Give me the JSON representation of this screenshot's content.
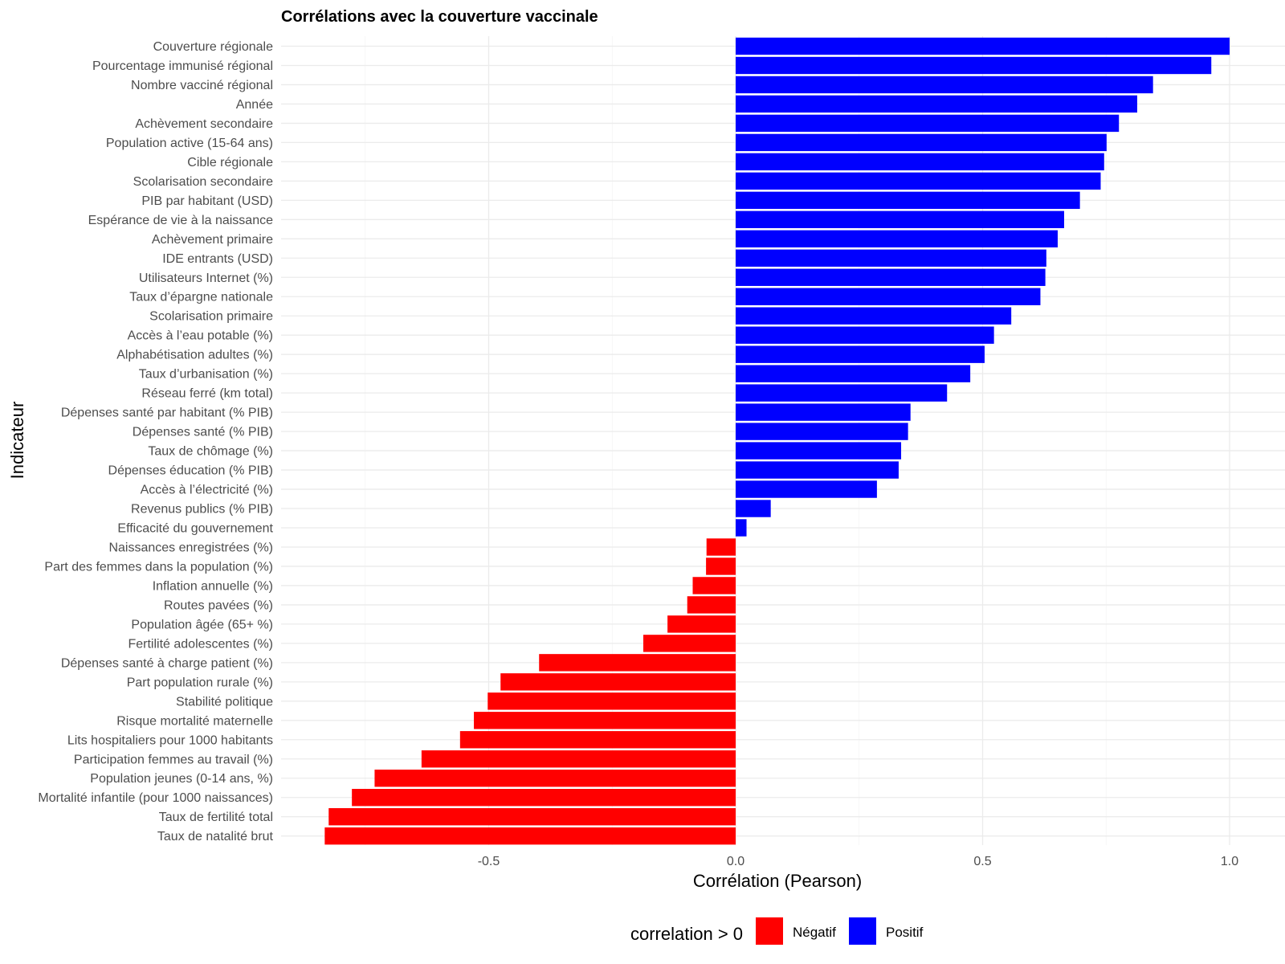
{
  "chart_data": {
    "type": "bar",
    "orientation": "horizontal",
    "title": "Corrélations avec la couverture vaccinale",
    "xlabel": "Corrélation (Pearson)",
    "ylabel": "Indicateur",
    "xlim": [
      -0.92,
      1.08
    ],
    "xticks": [
      -0.5,
      0.0,
      0.5,
      1.0
    ],
    "xtick_labels": [
      "-0.5",
      "0.0",
      "0.5",
      "1.0"
    ],
    "grid": true,
    "legend": {
      "title": "correlation > 0",
      "position": "bottom",
      "entries": [
        {
          "label": "Négatif",
          "color": "#ff0000"
        },
        {
          "label": "Positif",
          "color": "#0000ff"
        }
      ]
    },
    "colors": {
      "negative": "#ff0000",
      "positive": "#0000ff"
    },
    "categories": [
      "Couverture régionale",
      "Pourcentage immunisé régional",
      "Nombre vacciné régional",
      "Année",
      "Achèvement secondaire",
      "Population active (15-64 ans)",
      "Cible régionale",
      "Scolarisation secondaire",
      "PIB par habitant (USD)",
      "Espérance de vie à la naissance",
      "Achèvement primaire",
      "IDE entrants (USD)",
      "Utilisateurs Internet (%)",
      "Taux d’épargne nationale",
      "Scolarisation primaire",
      "Accès à l’eau potable (%)",
      "Alphabétisation adultes (%)",
      "Taux d’urbanisation (%)",
      "Réseau ferré (km total)",
      "Dépenses santé par habitant (% PIB)",
      "Dépenses santé (% PIB)",
      "Taux de chômage (%)",
      "Dépenses éducation (% PIB)",
      "Accès à l’électricité (%)",
      "Revenus publics (% PIB)",
      "Efficacité du gouvernement",
      "Naissances enregistrées (%)",
      "Part des femmes dans la population (%)",
      "Inflation annuelle (%)",
      "Routes pavées (%)",
      "Population âgée (65+ %)",
      "Fertilité adolescentes (%)",
      "Dépenses santé à charge patient (%)",
      "Part population rurale (%)",
      "Stabilité politique",
      "Risque mortalité maternelle",
      "Lits hospitaliers pour 1000 habitants",
      "Participation femmes au travail (%)",
      "Population jeunes (0-14 ans, %)",
      "Mortalité infantile (pour 1000 naissances)",
      "Taux de fertilité total",
      "Taux de natalité brut"
    ],
    "values": [
      1.0,
      0.963,
      0.845,
      0.813,
      0.776,
      0.751,
      0.746,
      0.739,
      0.697,
      0.665,
      0.652,
      0.629,
      0.627,
      0.617,
      0.558,
      0.523,
      0.504,
      0.475,
      0.428,
      0.354,
      0.349,
      0.335,
      0.33,
      0.286,
      0.071,
      0.022,
      -0.059,
      -0.06,
      -0.087,
      -0.098,
      -0.138,
      -0.187,
      -0.398,
      -0.476,
      -0.502,
      -0.53,
      -0.558,
      -0.636,
      -0.731,
      -0.777,
      -0.824,
      -0.832
    ]
  }
}
